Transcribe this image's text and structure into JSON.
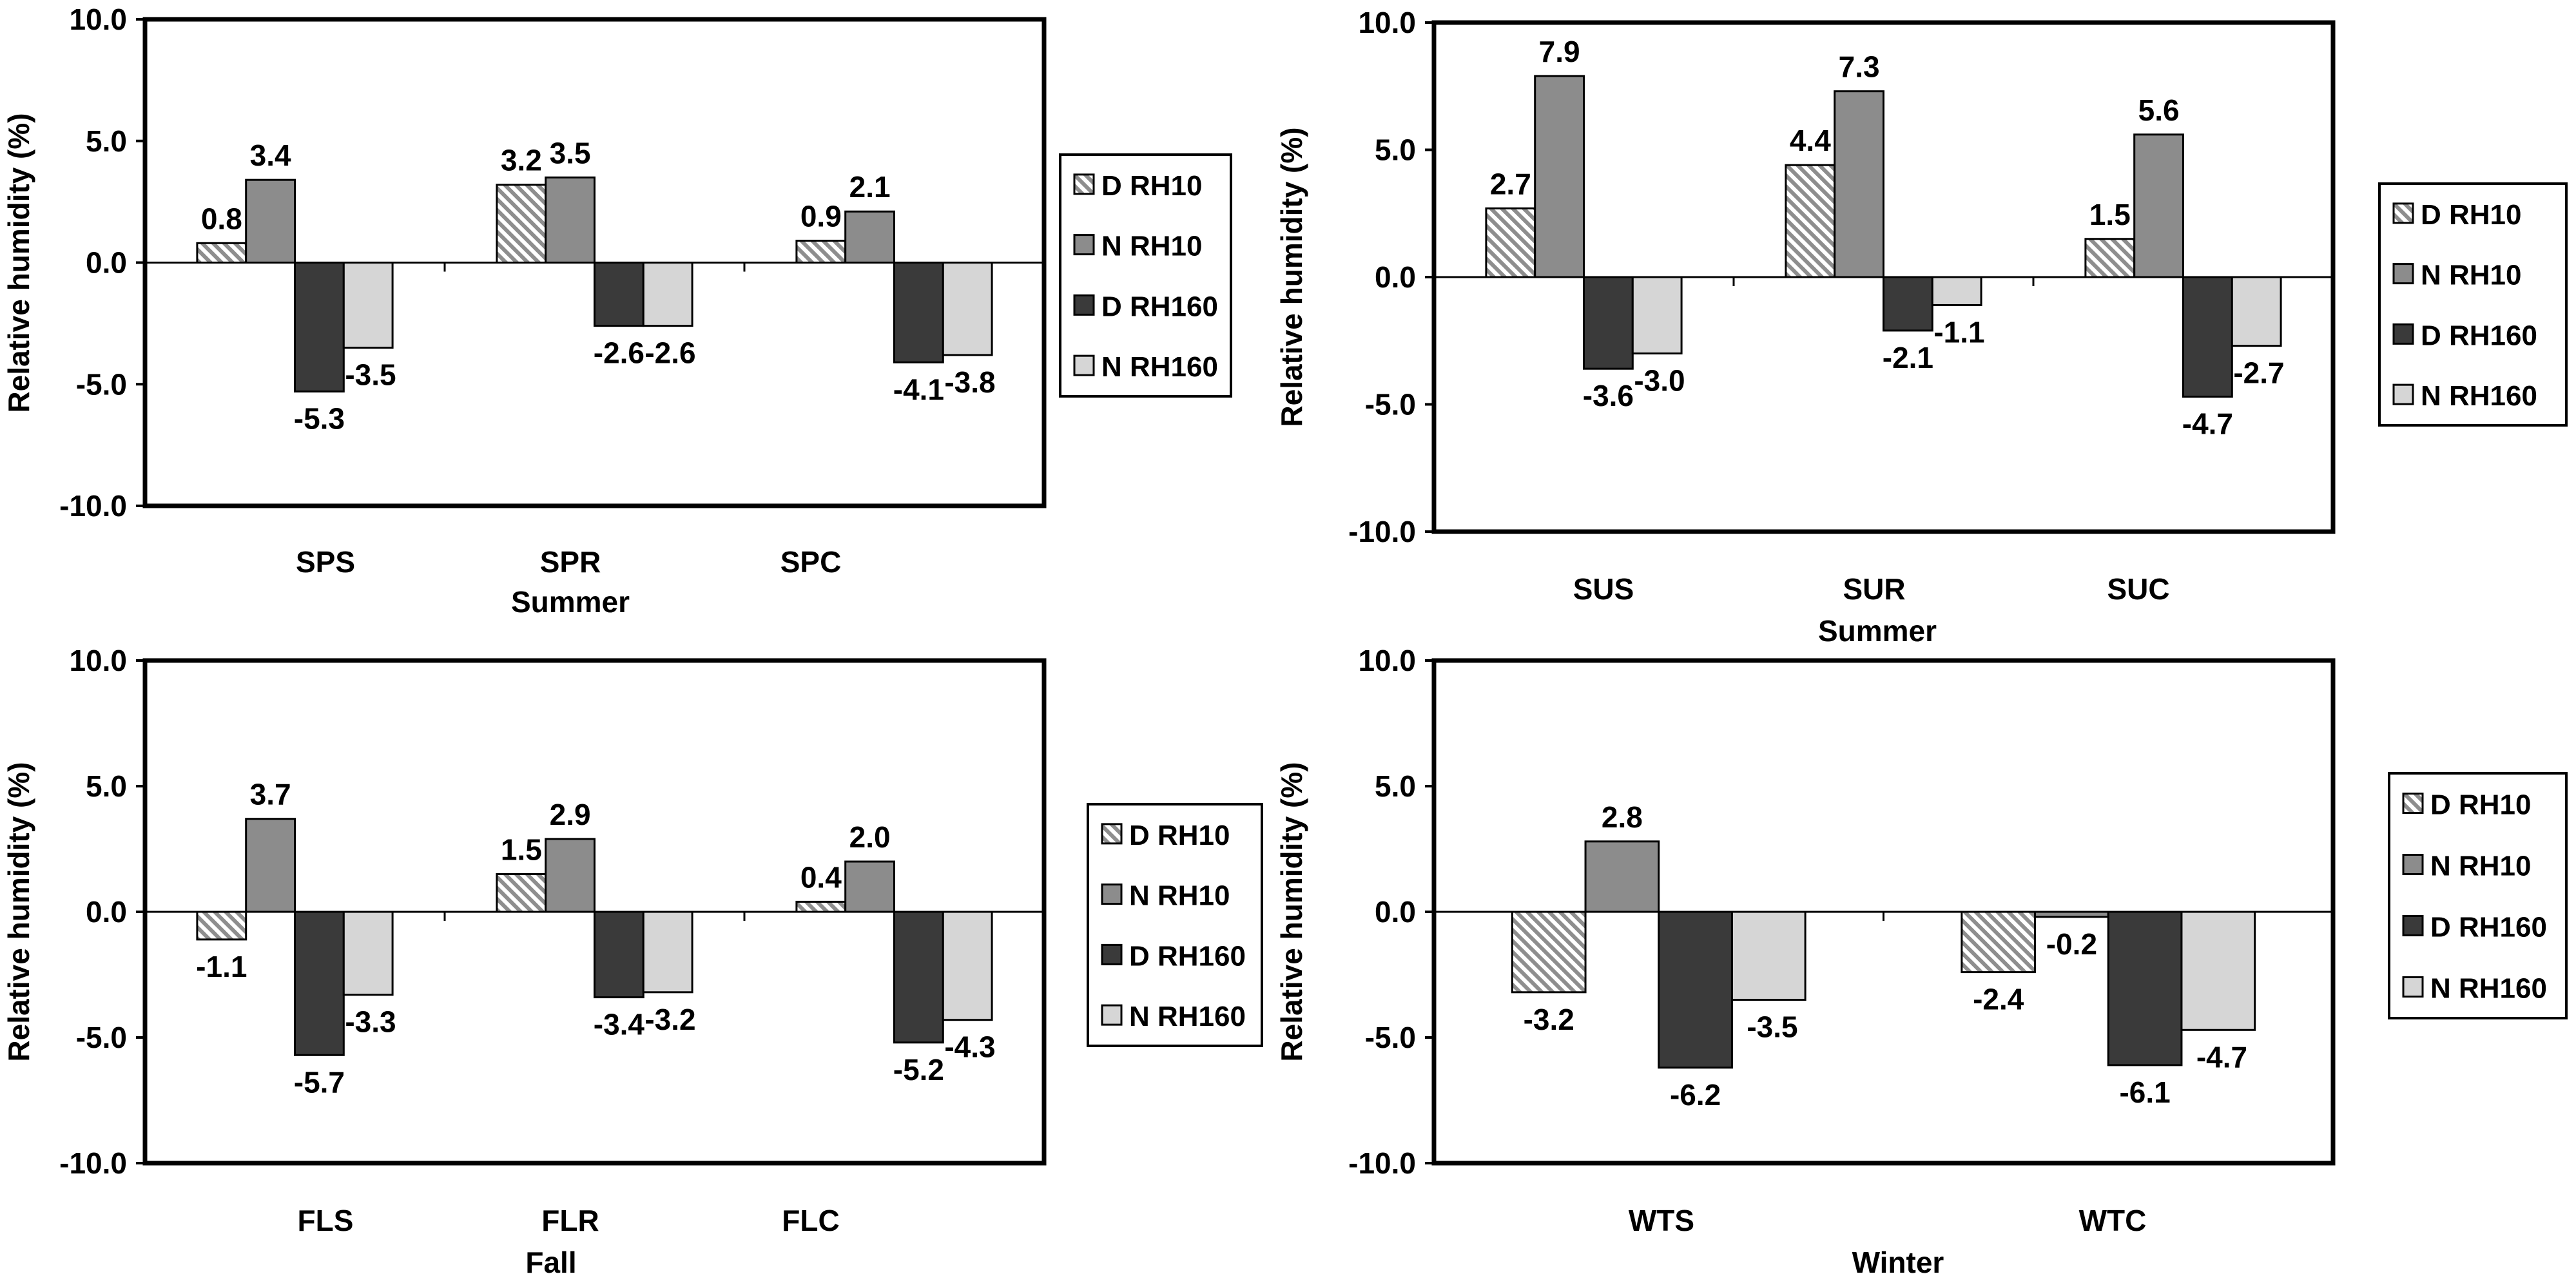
{
  "chart_data": [
    {
      "type": "bar",
      "title": "",
      "xlabel": "Summer",
      "ylabel": "Relative humidity (%)",
      "ylim": [
        -10,
        10
      ],
      "yticks": [
        -10,
        -5,
        0,
        5,
        10
      ],
      "ytick_labels": [
        "-10.0",
        "-5.0",
        "0.0",
        "5.0",
        "10.0"
      ],
      "categories": [
        "SPS",
        "SPR",
        "SPC"
      ],
      "series": [
        {
          "name": "D RH10",
          "values": [
            0.8,
            3.2,
            0.9
          ],
          "labels": [
            "0.8",
            "3.2",
            "0.9"
          ]
        },
        {
          "name": "N RH10",
          "values": [
            3.4,
            3.5,
            2.1
          ],
          "labels": [
            "3.4",
            "3.5",
            "2.1"
          ]
        },
        {
          "name": "D RH160",
          "values": [
            -5.3,
            -2.6,
            -4.1
          ],
          "labels": [
            "-5.3",
            "-2.6",
            "-4.1"
          ]
        },
        {
          "name": "N RH160",
          "values": [
            -3.5,
            -2.6,
            -3.8
          ],
          "labels": [
            "-3.5",
            "-2.6",
            "-3.8"
          ]
        }
      ],
      "grid": false,
      "legend": "right"
    },
    {
      "type": "bar",
      "title": "",
      "xlabel": "Summer",
      "ylabel": "Relative humidity (%)",
      "ylim": [
        -10,
        10
      ],
      "yticks": [
        -10,
        -5,
        0,
        5,
        10
      ],
      "ytick_labels": [
        "-10.0",
        "-5.0",
        "0.0",
        "5.0",
        "10.0"
      ],
      "categories": [
        "SUS",
        "SUR",
        "SUC"
      ],
      "series": [
        {
          "name": "D RH10",
          "values": [
            2.7,
            4.4,
            1.5
          ],
          "labels": [
            "2.7",
            "4.4",
            "1.5"
          ]
        },
        {
          "name": "N RH10",
          "values": [
            7.9,
            7.3,
            5.6
          ],
          "labels": [
            "7.9",
            "7.3",
            "5.6"
          ]
        },
        {
          "name": "D RH160",
          "values": [
            -3.6,
            -2.1,
            -4.7
          ],
          "labels": [
            "-3.6",
            "-2.1",
            "-4.7"
          ]
        },
        {
          "name": "N RH160",
          "values": [
            -3.0,
            -1.1,
            -2.7
          ],
          "labels": [
            "-3.0",
            "-1.1",
            "-2.7"
          ]
        }
      ],
      "grid": false,
      "legend": "right"
    },
    {
      "type": "bar",
      "title": "",
      "xlabel": "Fall",
      "ylabel": "Relative humidity (%)",
      "ylim": [
        -10,
        10
      ],
      "yticks": [
        -10,
        -5,
        0,
        5,
        10
      ],
      "ytick_labels": [
        "-10.0",
        "-5.0",
        "0.0",
        "5.0",
        "10.0"
      ],
      "categories": [
        "FLS",
        "FLR",
        "FLC"
      ],
      "series": [
        {
          "name": "D RH10",
          "values": [
            -1.1,
            1.5,
            0.4
          ],
          "labels": [
            "-1.1",
            "1.5",
            "0.4"
          ]
        },
        {
          "name": "N RH10",
          "values": [
            3.7,
            2.9,
            2.0
          ],
          "labels": [
            "3.7",
            "2.9",
            "2.0"
          ]
        },
        {
          "name": "D RH160",
          "values": [
            -5.7,
            -3.4,
            -5.2
          ],
          "labels": [
            "-5.7",
            "-3.4",
            "-5.2"
          ]
        },
        {
          "name": "N RH160",
          "values": [
            -3.3,
            -3.2,
            -4.3
          ],
          "labels": [
            "-3.3",
            "-3.2",
            "-4.3"
          ]
        }
      ],
      "grid": false,
      "legend": "right"
    },
    {
      "type": "bar",
      "title": "",
      "xlabel": "Winter",
      "ylabel": "Relative humidity (%)",
      "ylim": [
        -10,
        10
      ],
      "yticks": [
        -10,
        -5,
        0,
        5,
        10
      ],
      "ytick_labels": [
        "-10.0",
        "-5.0",
        "0.0",
        "5.0",
        "10.0"
      ],
      "categories": [
        "WTS",
        "WTC"
      ],
      "series": [
        {
          "name": "D RH10",
          "values": [
            -3.2,
            -2.4
          ],
          "labels": [
            "-3.2",
            "-2.4"
          ]
        },
        {
          "name": "N RH10",
          "values": [
            2.8,
            -0.2
          ],
          "labels": [
            "2.8",
            "-0.2"
          ]
        },
        {
          "name": "D RH160",
          "values": [
            -6.2,
            -6.1
          ],
          "labels": [
            "-6.2",
            "-6.1"
          ]
        },
        {
          "name": "N RH160",
          "values": [
            -3.5,
            -4.7
          ],
          "labels": [
            "-3.5",
            "-4.7"
          ]
        }
      ],
      "grid": false,
      "legend": "right"
    }
  ],
  "series_colors": {
    "D RH10": "#c8c8c8",
    "N RH10": "#8c8c8c",
    "D RH160": "#3a3a3a",
    "N RH160": "#d6d6d6"
  },
  "series_patterns": {
    "D RH10": "hatch",
    "N RH10": "solid",
    "D RH160": "solid",
    "N RH160": "solid"
  }
}
